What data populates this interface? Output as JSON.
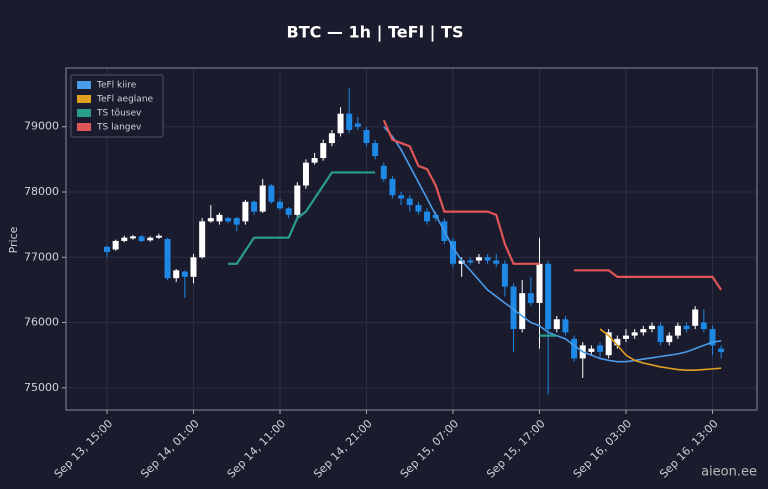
{
  "chart_data": {
    "type": "candlestick",
    "title": "BTC — 1h  |  TeFl  |  TS",
    "y_label": "Price",
    "watermark": "aieon.ee",
    "x": [
      "Sep 13, 15:00",
      "Sep 13, 16:00",
      "Sep 13, 17:00",
      "Sep 13, 18:00",
      "Sep 13, 19:00",
      "Sep 13, 20:00",
      "Sep 13, 21:00",
      "Sep 13, 22:00",
      "Sep 13, 23:00",
      "Sep 14, 00:00",
      "Sep 14, 01:00",
      "Sep 14, 02:00",
      "Sep 14, 03:00",
      "Sep 14, 04:00",
      "Sep 14, 05:00",
      "Sep 14, 06:00",
      "Sep 14, 07:00",
      "Sep 14, 08:00",
      "Sep 14, 09:00",
      "Sep 14, 10:00",
      "Sep 14, 11:00",
      "Sep 14, 12:00",
      "Sep 14, 13:00",
      "Sep 14, 14:00",
      "Sep 14, 15:00",
      "Sep 14, 16:00",
      "Sep 14, 17:00",
      "Sep 14, 18:00",
      "Sep 14, 19:00",
      "Sep 14, 20:00",
      "Sep 14, 21:00",
      "Sep 14, 22:00",
      "Sep 14, 23:00",
      "Sep 15, 00:00",
      "Sep 15, 01:00",
      "Sep 15, 02:00",
      "Sep 15, 03:00",
      "Sep 15, 04:00",
      "Sep 15, 05:00",
      "Sep 15, 06:00",
      "Sep 15, 07:00",
      "Sep 15, 08:00",
      "Sep 15, 09:00",
      "Sep 15, 10:00",
      "Sep 15, 11:00",
      "Sep 15, 12:00",
      "Sep 15, 13:00",
      "Sep 15, 14:00",
      "Sep 15, 15:00",
      "Sep 15, 16:00",
      "Sep 15, 17:00",
      "Sep 15, 18:00",
      "Sep 15, 19:00",
      "Sep 15, 20:00",
      "Sep 15, 21:00",
      "Sep 15, 22:00",
      "Sep 15, 23:00",
      "Sep 16, 00:00",
      "Sep 16, 01:00",
      "Sep 16, 02:00",
      "Sep 16, 03:00",
      "Sep 16, 04:00",
      "Sep 16, 05:00",
      "Sep 16, 06:00",
      "Sep 16, 07:00",
      "Sep 16, 08:00",
      "Sep 16, 09:00",
      "Sep 16, 10:00",
      "Sep 16, 11:00",
      "Sep 16, 12:00",
      "Sep 16, 13:00",
      "Sep 16, 14:00"
    ],
    "xtick_indices": [
      0,
      10,
      20,
      30,
      40,
      50,
      60,
      70
    ],
    "open": [
      77160,
      77120,
      77250,
      77290,
      77320,
      77260,
      77300,
      77280,
      76680,
      76780,
      76700,
      77000,
      77550,
      77550,
      77600,
      77600,
      77550,
      77850,
      77700,
      78100,
      77850,
      77750,
      77650,
      78100,
      78450,
      78520,
      78750,
      78900,
      79200,
      79050,
      78950,
      78750,
      78400,
      78200,
      77950,
      77900,
      77800,
      77700,
      77650,
      77550,
      77250,
      76900,
      76950,
      76950,
      77000,
      76950,
      76900,
      76550,
      75900,
      76450,
      76300,
      76900,
      75900,
      76050,
      75750,
      75450,
      75550,
      75650,
      75500,
      75650,
      75750,
      75800,
      75850,
      75900,
      75950,
      75700,
      75800,
      75950,
      75950,
      76000,
      75900,
      75600
    ],
    "high": [
      77180,
      77270,
      77330,
      77340,
      77340,
      77320,
      77360,
      77300,
      76820,
      76800,
      77050,
      77600,
      77800,
      77680,
      77620,
      77620,
      77880,
      77870,
      78200,
      78120,
      77900,
      77770,
      78150,
      78500,
      78600,
      78800,
      78950,
      79300,
      79600,
      79150,
      79000,
      78800,
      78450,
      78250,
      78000,
      77950,
      77850,
      77750,
      77700,
      77600,
      77300,
      77000,
      77000,
      77050,
      77050,
      77050,
      76950,
      76600,
      76650,
      76700,
      77300,
      76950,
      76100,
      76100,
      75800,
      75700,
      75650,
      75700,
      75900,
      75800,
      75900,
      75900,
      75950,
      76000,
      76000,
      75850,
      76000,
      76000,
      76250,
      76200,
      75950,
      75650
    ],
    "low": [
      77000,
      77100,
      77230,
      77270,
      77230,
      77240,
      77280,
      76650,
      76620,
      76380,
      76600,
      76980,
      77530,
      77500,
      77520,
      77400,
      77500,
      77650,
      77680,
      77820,
      77720,
      77600,
      77620,
      78050,
      78420,
      78480,
      78700,
      78850,
      78900,
      78950,
      78700,
      78500,
      78150,
      77900,
      77800,
      77700,
      77650,
      77500,
      77550,
      77200,
      76850,
      76700,
      76880,
      76900,
      76900,
      76850,
      76400,
      75550,
      75850,
      76250,
      75600,
      74900,
      75850,
      75800,
      75400,
      75150,
      75500,
      75450,
      75450,
      75600,
      75700,
      75750,
      75800,
      75850,
      75650,
      75650,
      75750,
      75850,
      75900,
      75850,
      75500,
      75450
    ],
    "close": [
      77080,
      77250,
      77300,
      77320,
      77250,
      77300,
      77330,
      76680,
      76800,
      76700,
      77000,
      77550,
      77600,
      77650,
      77550,
      77500,
      77850,
      77700,
      78100,
      77850,
      77750,
      77650,
      78100,
      78450,
      78520,
      78750,
      78900,
      79200,
      78950,
      79000,
      78750,
      78550,
      78200,
      77950,
      77900,
      77800,
      77700,
      77550,
      77600,
      77250,
      76900,
      76950,
      76920,
      77000,
      76950,
      76900,
      76550,
      75900,
      76450,
      76300,
      76900,
      75900,
      76050,
      75850,
      75450,
      75650,
      75600,
      75550,
      75850,
      75750,
      75800,
      75850,
      75900,
      75950,
      75700,
      75800,
      75950,
      75900,
      76200,
      75900,
      75650,
      75550
    ],
    "up_color": "#ffffff",
    "down_color": "#1e88e5",
    "series": [
      {
        "name": "TeFl kiire",
        "color": "#4a9be8",
        "values": [
          null,
          null,
          null,
          null,
          null,
          null,
          null,
          null,
          null,
          null,
          null,
          null,
          null,
          null,
          null,
          null,
          null,
          null,
          null,
          null,
          null,
          null,
          null,
          null,
          null,
          null,
          null,
          null,
          null,
          null,
          null,
          null,
          79000,
          78850,
          78650,
          78400,
          78150,
          77900,
          77650,
          77400,
          77150,
          76950,
          76800,
          76650,
          76500,
          76400,
          76300,
          76200,
          76100,
          76000,
          75950,
          75850,
          75800,
          75750,
          75650,
          75550,
          75500,
          75450,
          75420,
          75400,
          75400,
          75420,
          75440,
          75460,
          75480,
          75500,
          75520,
          75550,
          75600,
          75650,
          75700,
          75720
        ]
      },
      {
        "name": "TeFl aeglane",
        "color": "#e0a020",
        "values": [
          null,
          null,
          null,
          null,
          null,
          null,
          null,
          null,
          null,
          null,
          null,
          null,
          null,
          null,
          null,
          null,
          null,
          null,
          null,
          null,
          null,
          null,
          null,
          null,
          null,
          null,
          null,
          null,
          null,
          null,
          null,
          null,
          null,
          null,
          null,
          null,
          null,
          null,
          null,
          null,
          null,
          null,
          null,
          null,
          null,
          null,
          null,
          null,
          null,
          null,
          null,
          null,
          null,
          null,
          null,
          null,
          null,
          75900,
          75800,
          75650,
          75500,
          75420,
          75380,
          75350,
          75320,
          75300,
          75280,
          75270,
          75270,
          75280,
          75290,
          75300
        ]
      },
      {
        "name": "TS tõusev",
        "color": "#2a9d8f",
        "values": [
          null,
          null,
          null,
          null,
          null,
          null,
          null,
          null,
          null,
          null,
          null,
          null,
          null,
          null,
          76900,
          76900,
          77100,
          77300,
          77300,
          77300,
          77300,
          77300,
          77600,
          77700,
          77900,
          78100,
          78300,
          78300,
          78300,
          78300,
          78300,
          78300,
          null,
          null,
          null,
          null,
          null,
          null,
          null,
          null,
          null,
          null,
          null,
          null,
          null,
          null,
          null,
          null,
          null,
          null,
          75800,
          75800,
          75800,
          null,
          null,
          null,
          null,
          null,
          null,
          null,
          null,
          null,
          null,
          null,
          null,
          null,
          null,
          null,
          null,
          null,
          null,
          null
        ]
      },
      {
        "name": "TS langev",
        "color": "#e05555",
        "values": [
          null,
          null,
          null,
          null,
          null,
          null,
          null,
          null,
          null,
          null,
          null,
          null,
          null,
          null,
          null,
          null,
          null,
          null,
          null,
          null,
          null,
          null,
          null,
          null,
          null,
          null,
          null,
          null,
          null,
          null,
          null,
          null,
          79100,
          78800,
          78750,
          78700,
          78400,
          78350,
          78100,
          77700,
          77700,
          77700,
          77700,
          77700,
          77700,
          77650,
          77200,
          76900,
          76900,
          76900,
          76900,
          null,
          null,
          null,
          76800,
          76800,
          76800,
          76800,
          76800,
          76700,
          76700,
          76700,
          76700,
          76700,
          76700,
          76700,
          76700,
          76700,
          76700,
          76700,
          76700,
          76500
        ]
      }
    ],
    "ylim": [
      74660,
      79900
    ],
    "yticks": [
      75000,
      76000,
      77000,
      78000,
      79000
    ],
    "grid": true,
    "legend": "upper left"
  }
}
